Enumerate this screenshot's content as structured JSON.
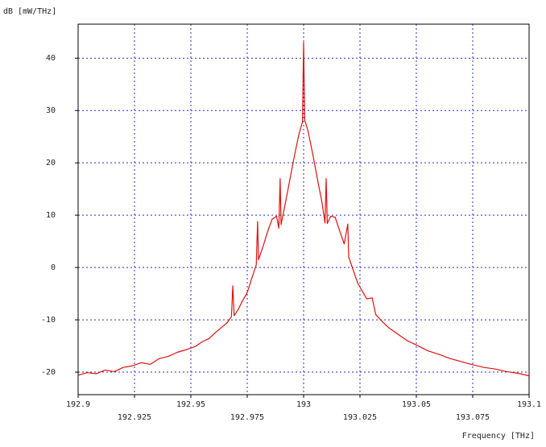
{
  "chart_data": {
    "type": "line",
    "y_label": "dB [mW/THz]",
    "x_label": "Frequency [THz]",
    "color": "#e01010",
    "grid": true,
    "xlim": [
      192.9,
      193.1
    ],
    "xticks": [
      192.9,
      192.925,
      192.95,
      192.975,
      193,
      193.025,
      193.05,
      193.075,
      193.1
    ],
    "ylim": [
      -24.3,
      46.5
    ],
    "yticks": [
      -20,
      -10,
      0,
      10,
      20,
      30,
      40
    ],
    "x": [
      192.9,
      192.904,
      192.908,
      192.912,
      192.916,
      192.92,
      192.924,
      192.928,
      192.932,
      192.936,
      192.94,
      192.944,
      192.948,
      192.952,
      192.955,
      192.958,
      192.961,
      192.964,
      192.966,
      192.968,
      192.9686,
      192.9692,
      192.971,
      192.973,
      192.975,
      192.977,
      192.979,
      192.9796,
      192.98,
      192.982,
      192.984,
      192.986,
      192.988,
      192.989,
      192.9896,
      192.99,
      192.992,
      192.994,
      192.996,
      192.998,
      192.9995,
      193.0,
      193.0005,
      193.002,
      193.004,
      193.006,
      193.008,
      193.0095,
      193.01,
      193.0105,
      193.012,
      193.014,
      193.016,
      193.018,
      193.0196,
      193.02,
      193.022,
      193.024,
      193.026,
      193.028,
      193.0304,
      193.032,
      193.035,
      193.038,
      193.042,
      193.046,
      193.05,
      193.055,
      193.06,
      193.065,
      193.07,
      193.075,
      193.08,
      193.085,
      193.09,
      193.095,
      193.1
    ],
    "values": [
      -20.6,
      -20.1,
      -20.3,
      -19.6,
      -19.9,
      -19.1,
      -18.8,
      -18.2,
      -18.5,
      -17.4,
      -17.0,
      -16.2,
      -15.7,
      -15.1,
      -14.2,
      -13.6,
      -12.4,
      -11.3,
      -10.6,
      -9.4,
      -3.5,
      -9.2,
      -8.0,
      -6.3,
      -4.8,
      -2.1,
      0.5,
      8.8,
      1.5,
      4.0,
      6.8,
      9.2,
      9.8,
      7.5,
      17.0,
      8.2,
      12.5,
      17.0,
      21.5,
      25.6,
      27.8,
      43.0,
      28.2,
      26.0,
      21.8,
      17.2,
      12.8,
      8.5,
      17.0,
      8.4,
      9.8,
      9.6,
      7.0,
      4.5,
      8.3,
      2.0,
      -0.5,
      -3.0,
      -4.5,
      -6.0,
      -5.8,
      -9.0,
      -10.4,
      -11.6,
      -12.8,
      -14.0,
      -14.8,
      -15.9,
      -16.6,
      -17.4,
      -18.0,
      -18.6,
      -19.1,
      -19.4,
      -19.9,
      -20.2,
      -20.7
    ]
  }
}
